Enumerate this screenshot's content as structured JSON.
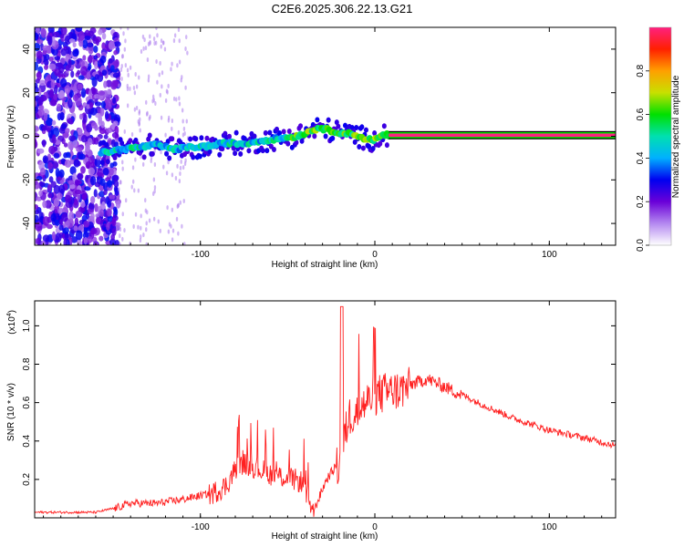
{
  "chart_data": {
    "title": "C2E6.2025.306.22.13.G21",
    "top_panel": {
      "type": "heatmap",
      "xlabel": "Height of straight line (km)",
      "ylabel": "Frequency (Hz)",
      "xlim": [
        -195,
        138
      ],
      "ylim": [
        -50,
        50
      ],
      "x_ticks": [
        -100,
        0,
        100
      ],
      "y_ticks": [
        -40,
        -20,
        0,
        20,
        40
      ],
      "ridge": {
        "x": [
          -155,
          -145,
          -135,
          -125,
          -115,
          -105,
          -95,
          -85,
          -75,
          -65,
          -55,
          -45,
          -38,
          -32,
          -25,
          -18,
          -10,
          -5,
          0,
          5,
          10,
          60,
          100,
          138
        ],
        "y": [
          -7.5,
          -6,
          -5,
          -4,
          -6,
          -5,
          -4.5,
          -3,
          -3.5,
          -2,
          -1,
          0,
          2,
          4,
          2.5,
          1.5,
          0.5,
          -1.5,
          -1.5,
          0.5,
          0.5,
          0.5,
          0.5,
          0.5
        ]
      }
    },
    "colorbar": {
      "label": "Normalized spectral amplitude",
      "range": [
        0,
        1
      ],
      "ticks": [
        "0.0",
        "0.2",
        "0.4",
        "0.6",
        "0.8"
      ],
      "colors": [
        "#ffffff",
        "#b488f0",
        "#6a00d8",
        "#0000f0",
        "#00b0ff",
        "#00e0b0",
        "#00e000",
        "#c8e000",
        "#ffa000",
        "#ff2000",
        "#ff2080"
      ]
    },
    "bottom_panel": {
      "type": "line",
      "xlabel": "Height of straight line (km)",
      "ylabel": "SNR (10 * v/v)",
      "y_scale_label": "(x10",
      "y_scale_exponent": "4",
      "xlim": [
        -195,
        138
      ],
      "ylim": [
        0,
        1.13
      ],
      "x_ticks": [
        -100,
        0,
        100
      ],
      "y_ticks": [
        0.2,
        0.4,
        0.6,
        0.8,
        1.0
      ],
      "y_tick_labels": [
        "0.2",
        "0.4",
        "0.6",
        "0.8",
        "1.0"
      ],
      "series": [
        {
          "name": "SNR",
          "color": "#ff2020",
          "envelope_x": [
            -195,
            -160,
            -150,
            -140,
            -125,
            -110,
            -95,
            -85,
            -78,
            -70,
            -60,
            -50,
            -42,
            -35,
            -28,
            -22,
            -20,
            -15,
            -10,
            -5,
            0,
            10,
            20,
            30,
            40,
            60,
            80,
            100,
            120,
            138
          ],
          "envelope_y": [
            0.03,
            0.03,
            0.05,
            0.08,
            0.08,
            0.1,
            0.13,
            0.18,
            0.3,
            0.28,
            0.24,
            0.22,
            0.2,
            0.04,
            0.2,
            0.28,
            0.3,
            0.55,
            0.58,
            0.62,
            0.66,
            0.68,
            0.7,
            0.73,
            0.69,
            0.6,
            0.52,
            0.46,
            0.42,
            0.38
          ]
        }
      ]
    }
  }
}
